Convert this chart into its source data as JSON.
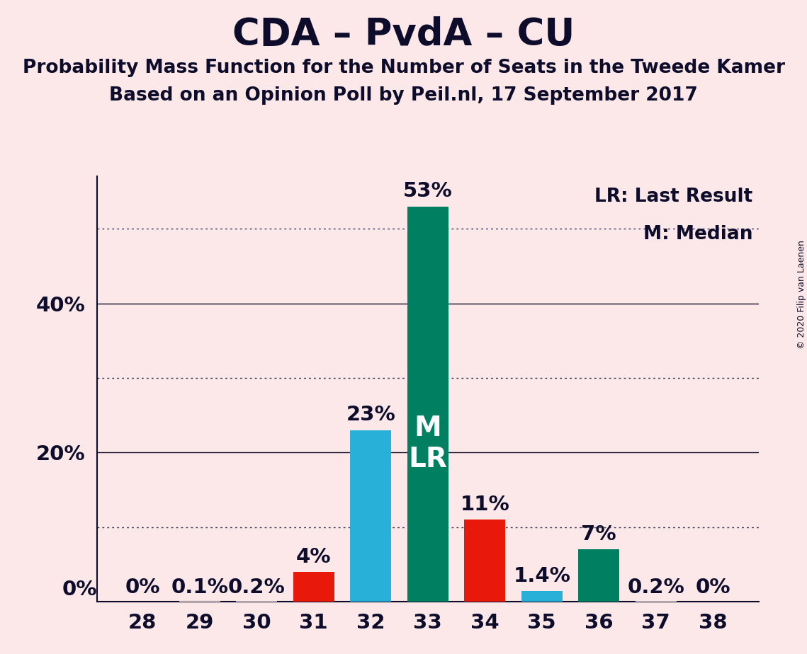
{
  "title": "CDA – PvdA – CU",
  "subtitle1": "Probability Mass Function for the Number of Seats in the Tweede Kamer",
  "subtitle2": "Based on an Opinion Poll by Peil.nl, 17 September 2017",
  "copyright": "© 2020 Filip van Laenen",
  "seats": [
    28,
    29,
    30,
    31,
    32,
    33,
    34,
    35,
    36,
    37,
    38
  ],
  "values": [
    0.0,
    0.1,
    0.2,
    4.0,
    23.0,
    53.0,
    11.0,
    1.4,
    7.0,
    0.2,
    0.0
  ],
  "labels": [
    "0%",
    "0.1%",
    "0.2%",
    "4%",
    "23%",
    "53%",
    "11%",
    "1.4%",
    "7%",
    "0.2%",
    "0%"
  ],
  "colors": [
    "#fce8e8",
    "#fce8e8",
    "#fce8e8",
    "#e8190a",
    "#29b0d8",
    "#008060",
    "#e8190a",
    "#29b0d8",
    "#008060",
    "#fce8e8",
    "#fce8e8"
  ],
  "median_seat": 33,
  "lr_seat": 33,
  "legend_lr": "LR: Last Result",
  "legend_m": "M: Median",
  "ylim_max": 57,
  "solid_gridlines": [
    20,
    40
  ],
  "dotted_gridlines": [
    10,
    30,
    50
  ],
  "background_color": "#fce8e8",
  "title_fontsize": 38,
  "subtitle_fontsize": 19,
  "bar_label_fontsize": 21,
  "axis_fontsize": 21,
  "legend_fontsize": 19,
  "mlr_fontsize": 28,
  "copyright_fontsize": 9,
  "ytick_positions": [
    20,
    40
  ],
  "ytick_labels": [
    "20%",
    "40%"
  ],
  "xtick_label_0_pos": 28,
  "bar_width": 0.72
}
